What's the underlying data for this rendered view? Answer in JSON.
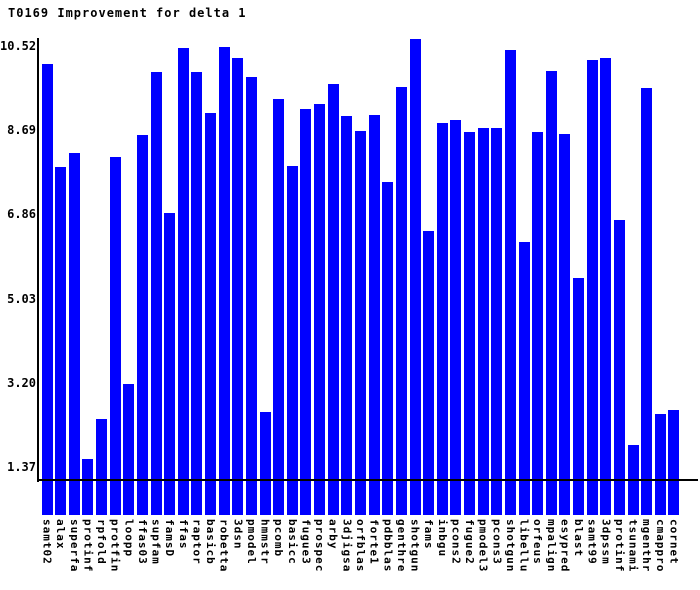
{
  "chart_data": {
    "type": "bar",
    "title": "T0169 Improvement for delta 1",
    "xlabel": "",
    "ylabel": "",
    "yticks": [
      "10.52",
      "8.69",
      "6.86",
      "5.03",
      "3.20",
      "1.37"
    ],
    "ytick_values": [
      10.52,
      8.69,
      6.86,
      5.03,
      3.2,
      1.37
    ],
    "ylim": [
      0.32,
      10.72
    ],
    "grid": false,
    "legend": "none",
    "bar_color": "#0000ff",
    "axis_color": "#000000",
    "categories": [
      "samt02",
      "alax",
      "superfa",
      "protinf",
      "rpfold",
      "protfin",
      "loopp",
      "ffas03",
      "supfam",
      "famsD",
      "ffas",
      "raptor",
      "basicb",
      "robetta",
      "3dsn",
      "pmodel",
      "hmmstr",
      "pcomb",
      "basicc",
      "fugue3",
      "prospec",
      "arby",
      "3djigsa",
      "orfblas",
      "forte1",
      "pdbblas",
      "genthre",
      "shotgun",
      "fams",
      "inbgu",
      "pcons2",
      "fugue2",
      "pmodel3",
      "pcons3",
      "shotgun",
      "libellu",
      "orfeus",
      "mpalign",
      "esypred",
      "blast",
      "samt99",
      "3dpssm",
      "protinf",
      "tsunami",
      "mgenthr",
      "cmappro",
      "cornet"
    ],
    "values": [
      10.14,
      7.9,
      8.19,
      1.54,
      2.42,
      8.1,
      3.18,
      8.58,
      9.96,
      6.9,
      10.48,
      9.95,
      9.06,
      10.51,
      10.27,
      9.85,
      2.56,
      9.37,
      7.91,
      9.15,
      9.27,
      9.69,
      8.99,
      8.67,
      9.02,
      7.56,
      9.63,
      10.67,
      6.5,
      8.85,
      8.92,
      8.66,
      8.73,
      8.73,
      10.44,
      6.26,
      8.65,
      9.97,
      8.6,
      5.48,
      10.21,
      10.27,
      6.75,
      1.85,
      9.6,
      2.53,
      2.6
    ]
  }
}
